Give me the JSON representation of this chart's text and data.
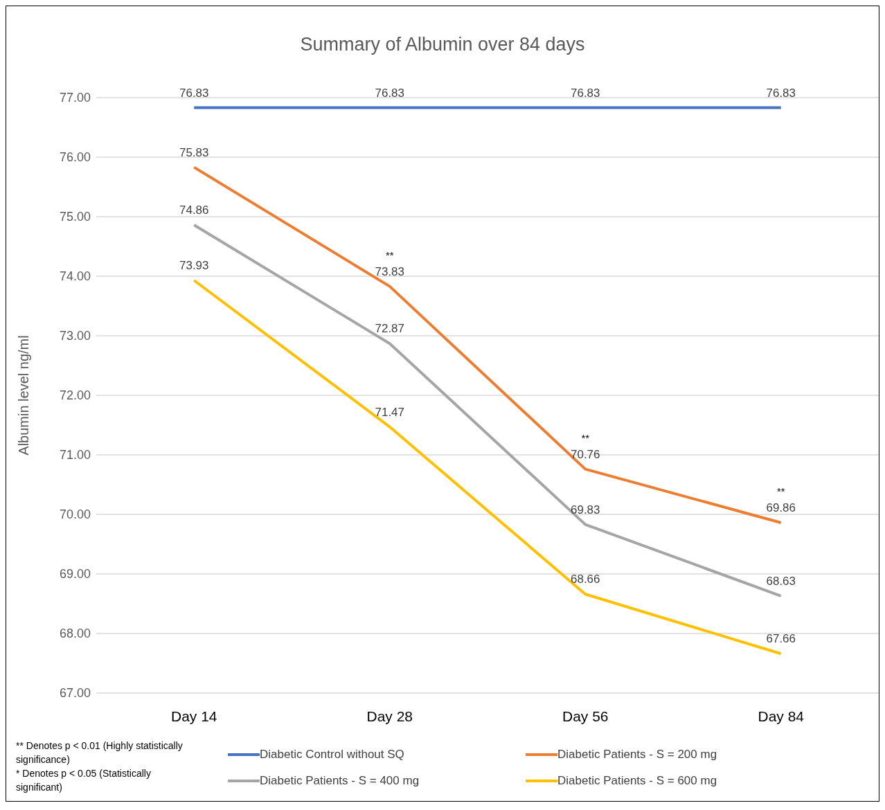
{
  "chart_data": {
    "type": "line",
    "title": "Summary of Albumin over 84 days",
    "ylabel": "Albumin level ng/ml",
    "categories": [
      "Day 14",
      "Day 28",
      "Day 56",
      "Day 84"
    ],
    "series": [
      {
        "name": "Diabetic Control without SQ",
        "color": "#4472c4",
        "values": [
          76.83,
          76.83,
          76.83,
          76.83
        ]
      },
      {
        "name": "Diabetic Patients - S = 200 mg",
        "color": "#ed7d31",
        "values": [
          75.83,
          73.83,
          70.76,
          69.86
        ]
      },
      {
        "name": "Diabetic Patients - S = 400 mg",
        "color": "#a5a5a5",
        "values": [
          74.86,
          72.87,
          69.83,
          68.63
        ]
      },
      {
        "name": "Diabetic Patients - S = 600 mg",
        "color": "#ffc000",
        "values": [
          73.93,
          71.47,
          68.66,
          67.66
        ]
      }
    ],
    "ylim": [
      67,
      77
    ],
    "yticks": [
      {
        "value": 67,
        "label": "67.00"
      },
      {
        "value": 68,
        "label": "68.00"
      },
      {
        "value": 69,
        "label": "69.00"
      },
      {
        "value": 70,
        "label": "70.00"
      },
      {
        "value": 71,
        "label": "71.00"
      },
      {
        "value": 72,
        "label": "72.00"
      },
      {
        "value": 73,
        "label": "73.00"
      },
      {
        "value": 74,
        "label": "74.00"
      },
      {
        "value": 75,
        "label": "75.00"
      },
      {
        "value": 76,
        "label": "76.00"
      },
      {
        "value": 77,
        "label": "77.00"
      }
    ],
    "grid": "y",
    "legend": "bottom",
    "marker": "none",
    "line_style": "solid",
    "data_labels": true,
    "annotations": [
      {
        "text": "**",
        "x": "Day 28",
        "y": 73.83
      },
      {
        "text": "**",
        "x": "Day 56",
        "y": 70.76
      },
      {
        "text": "**",
        "x": "Day 84",
        "y": 69.86
      },
      "** Denotes p < 0.01 (Highly statistically significance)",
      "* Denotes p < 0.05 (Statistically significant)"
    ]
  }
}
